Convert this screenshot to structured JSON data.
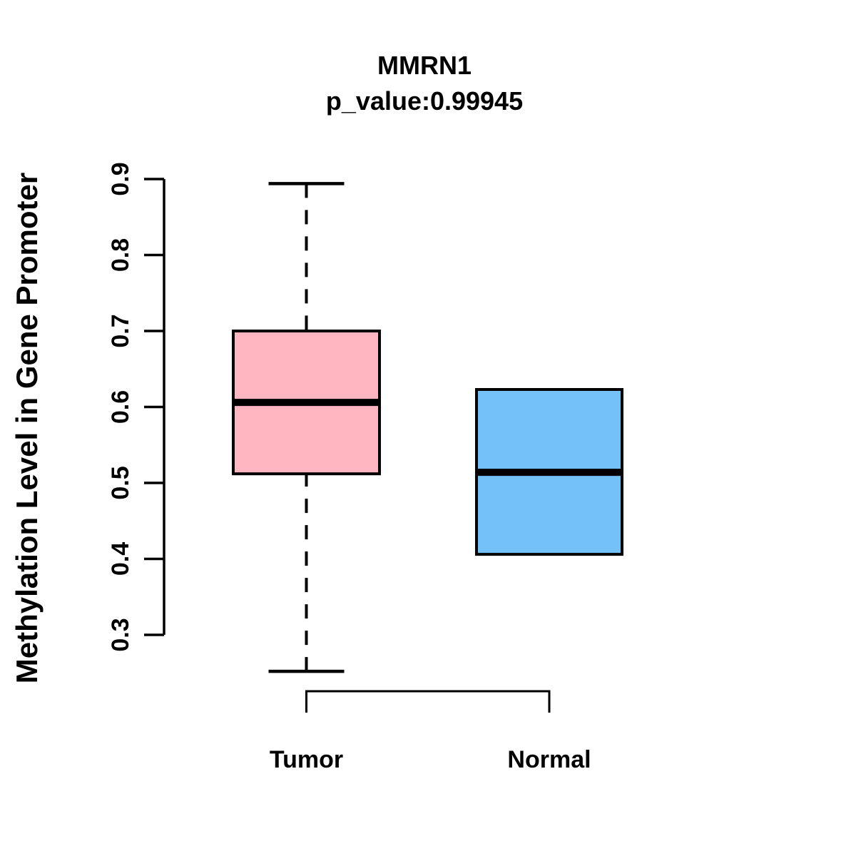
{
  "figure": {
    "background": "#ffffff",
    "line_color": "#000000"
  },
  "chart_data": {
    "type": "boxplot",
    "title": "MMRN1",
    "subtitle": "p_value:0.99945",
    "xlabel": "",
    "ylabel": "Methylation Level in Gene Promoter",
    "yticks": [
      0.3,
      0.4,
      0.5,
      0.6,
      0.7,
      0.8,
      0.9
    ],
    "ylim": [
      0.25,
      0.9
    ],
    "grid": false,
    "legend": "none",
    "categories": [
      "Tumor",
      "Normal"
    ],
    "series": [
      {
        "name": "Tumor",
        "box_color": "#FFB6C1",
        "whisker_low": 0.252,
        "q1": 0.512,
        "median": 0.606,
        "q3": 0.7,
        "whisker_high": 0.894,
        "whisker_style": "dashed"
      },
      {
        "name": "Normal",
        "box_color": "#74C1F8",
        "whisker_low": 0.406,
        "q1": 0.406,
        "median": 0.514,
        "q3": 0.623,
        "whisker_high": 0.623,
        "whisker_style": "dashed"
      }
    ]
  }
}
